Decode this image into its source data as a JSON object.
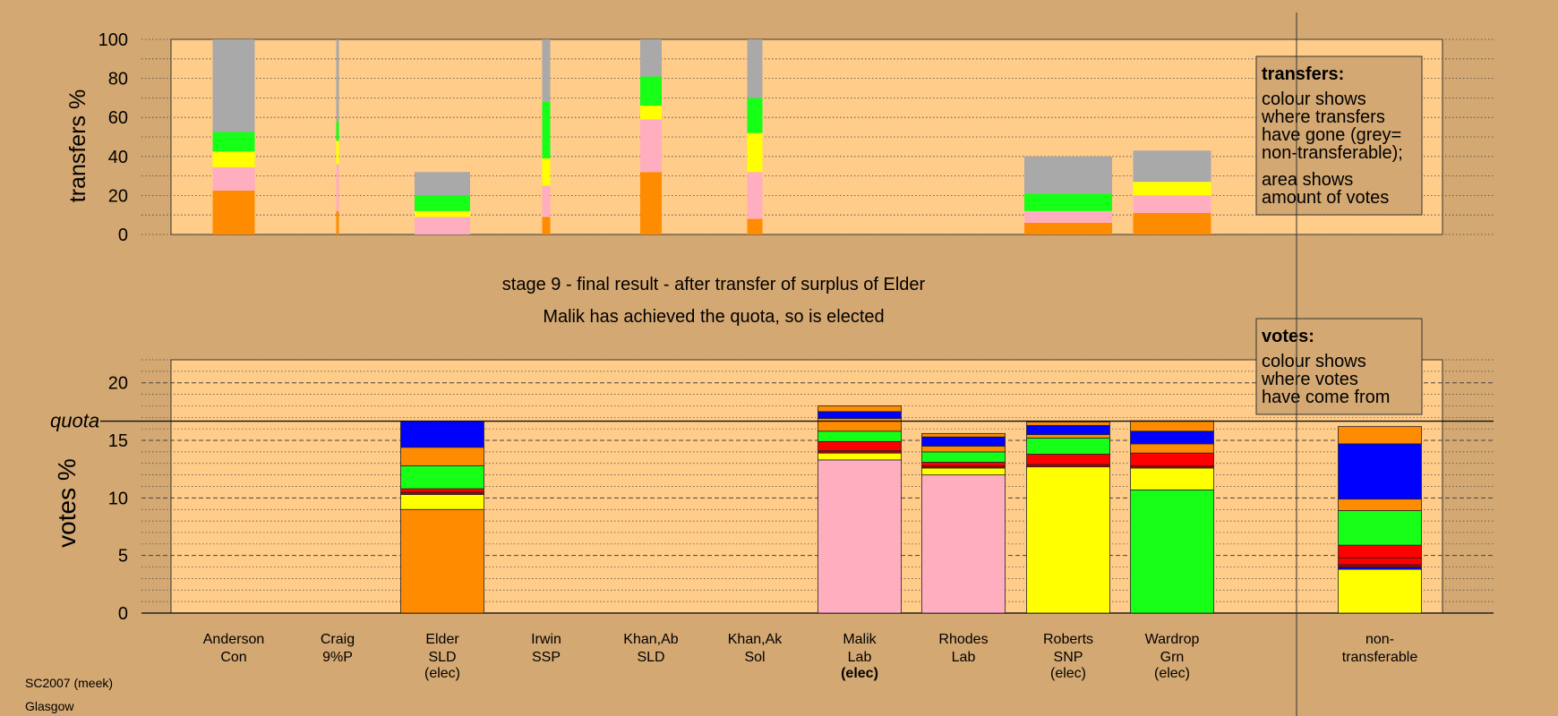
{
  "colors": {
    "background": "#d4a872",
    "plot_area": "#ffcc8a",
    "Con": "#ff8c00",
    "Lab": "#ffaec0",
    "SNP": "#ffff00",
    "Grn": "#16ff16",
    "SLD": "#ff8c00",
    "SSP": "#ff0000",
    "9%P": "#b00000",
    "Sol": "#0000ff",
    "non-transferable": "#a9a9a9",
    "grid": "#555555"
  },
  "chart_data": [
    {
      "type": "bar",
      "stacked": true,
      "ylabel": "transfers %",
      "ylim": [
        0,
        100
      ],
      "yticks": [
        0,
        20,
        40,
        60,
        80,
        100
      ],
      "grid": "dotted every 10",
      "categories": [
        "Anderson Con",
        "Craig 9%P",
        "Elder SLD",
        "Irwin SSP",
        "Khan,Ab SLD",
        "Khan,Ak Sol",
        "Malik Lab",
        "Rhodes Lab",
        "Roberts SNP",
        "Wardrop Grn"
      ],
      "bars": [
        {
          "candidate": "Anderson",
          "segments": [
            {
              "party": "Con",
              "value": 22.5
            },
            {
              "party": "Lab",
              "value": 12
            },
            {
              "party": "SNP",
              "value": 8
            },
            {
              "party": "Grn",
              "value": 10
            },
            {
              "party": "non-transferable",
              "value": 47.5
            }
          ]
        },
        {
          "candidate": "Craig",
          "segments": [
            {
              "party": "Con",
              "value": 12
            },
            {
              "party": "Lab",
              "value": 24
            },
            {
              "party": "SNP",
              "value": 12
            },
            {
              "party": "Grn",
              "value": 10
            },
            {
              "party": "non-transferable",
              "value": 42
            }
          ]
        },
        {
          "candidate": "Elder",
          "segments": [
            {
              "party": "Lab",
              "value": 9
            },
            {
              "party": "SNP",
              "value": 3
            },
            {
              "party": "Grn",
              "value": 8
            },
            {
              "party": "non-transferable",
              "value": 12
            }
          ]
        },
        {
          "candidate": "Irwin",
          "segments": [
            {
              "party": "Con",
              "value": 9
            },
            {
              "party": "Lab",
              "value": 16
            },
            {
              "party": "SNP",
              "value": 14
            },
            {
              "party": "Grn",
              "value": 29
            },
            {
              "party": "non-transferable",
              "value": 32
            }
          ]
        },
        {
          "candidate": "Khan,Ab",
          "segments": [
            {
              "party": "Con",
              "value": 32
            },
            {
              "party": "Lab",
              "value": 27
            },
            {
              "party": "SNP",
              "value": 7
            },
            {
              "party": "Grn",
              "value": 15
            },
            {
              "party": "non-transferable",
              "value": 19
            }
          ]
        },
        {
          "candidate": "Khan,Ak",
          "segments": [
            {
              "party": "Con",
              "value": 8
            },
            {
              "party": "Lab",
              "value": 24
            },
            {
              "party": "SNP",
              "value": 20
            },
            {
              "party": "Grn",
              "value": 18
            },
            {
              "party": "non-transferable",
              "value": 30
            }
          ]
        },
        {
          "candidate": "Roberts",
          "segments": [
            {
              "party": "Con",
              "value": 6
            },
            {
              "party": "Lab",
              "value": 6
            },
            {
              "party": "Grn",
              "value": 9
            },
            {
              "party": "non-transferable",
              "value": 19
            }
          ]
        },
        {
          "candidate": "Wardrop",
          "segments": [
            {
              "party": "Con",
              "value": 11
            },
            {
              "party": "Lab",
              "value": 9
            },
            {
              "party": "SNP",
              "value": 7
            },
            {
              "party": "non-transferable",
              "value": 16
            }
          ]
        }
      ],
      "legend": {
        "title": "transfers:",
        "lines_1": [
          "colour shows",
          "where transfers",
          "have gone (grey=",
          "non-transferable);"
        ],
        "lines_2": [
          "area shows",
          "amount of votes"
        ]
      }
    },
    {
      "type": "bar",
      "stacked": true,
      "ylabel": "votes %",
      "ylim": [
        0,
        22
      ],
      "yticks": [
        0,
        5,
        10,
        15,
        20
      ],
      "quota": 16.67,
      "quota_label": "quota",
      "grid": "dashed every 5, dotted every 1",
      "bars": [
        {
          "candidate": "Elder",
          "segments": [
            {
              "party": "Con",
              "value": 9
            },
            {
              "party": "SNP",
              "value": 1.3
            },
            {
              "party": "9%P",
              "value": 0.2
            },
            {
              "party": "SSP",
              "value": 0.3
            },
            {
              "party": "Grn",
              "value": 2
            },
            {
              "party": "SLD",
              "value": 1.6
            },
            {
              "party": "Sol",
              "value": 2.27
            }
          ]
        },
        {
          "candidate": "Malik",
          "segments": [
            {
              "party": "Lab",
              "value": 13.3
            },
            {
              "party": "SNP",
              "value": 0.6
            },
            {
              "party": "9%P",
              "value": 0.2
            },
            {
              "party": "SSP",
              "value": 0.8
            },
            {
              "party": "Grn",
              "value": 0.9
            },
            {
              "party": "SLD",
              "value": 1.1
            },
            {
              "party": "Sol",
              "value": 0.6
            },
            {
              "party": "Con",
              "value": 0.5
            }
          ]
        },
        {
          "candidate": "Rhodes",
          "segments": [
            {
              "party": "Lab",
              "value": 12
            },
            {
              "party": "SNP",
              "value": 0.6
            },
            {
              "party": "9%P",
              "value": 0.2
            },
            {
              "party": "SSP",
              "value": 0.3
            },
            {
              "party": "Grn",
              "value": 0.9
            },
            {
              "party": "SLD",
              "value": 0.5
            },
            {
              "party": "Sol",
              "value": 0.8
            },
            {
              "party": "Con",
              "value": 0.3
            }
          ]
        },
        {
          "candidate": "Roberts",
          "segments": [
            {
              "party": "SNP",
              "value": 12.7
            },
            {
              "party": "9%P",
              "value": 0.2
            },
            {
              "party": "SSP",
              "value": 0.9
            },
            {
              "party": "Grn",
              "value": 1.4
            },
            {
              "party": "SLD",
              "value": 0.3
            },
            {
              "party": "Sol",
              "value": 0.8
            },
            {
              "party": "Con",
              "value": 0.3
            }
          ]
        },
        {
          "candidate": "Wardrop",
          "segments": [
            {
              "party": "Grn",
              "value": 10.7
            },
            {
              "party": "SNP",
              "value": 1.9
            },
            {
              "party": "9%P",
              "value": 0.2
            },
            {
              "party": "SSP",
              "value": 1.1
            },
            {
              "party": "Con",
              "value": 0.8
            },
            {
              "party": "Sol",
              "value": 1.1
            },
            {
              "party": "SLD",
              "value": 0.9
            }
          ]
        },
        {
          "candidate": "non-transferable",
          "segments": [
            {
              "party": "SNP",
              "value": 3.8
            },
            {
              "party": "Sol",
              "value": 0.2
            },
            {
              "party": "9%P",
              "value": 0.2
            },
            {
              "party": "SSP",
              "value": 0.6
            },
            {
              "party": "SSP",
              "value": 1.1
            },
            {
              "party": "Grn",
              "value": 3.0
            },
            {
              "party": "Con",
              "value": 1.0
            },
            {
              "party": "Sol",
              "value": 4.8
            },
            {
              "party": "Con",
              "value": 1.5
            }
          ]
        }
      ],
      "legend": {
        "title": "votes:",
        "lines": [
          "colour shows",
          "where votes",
          "have come from"
        ]
      }
    }
  ],
  "stage_title": "stage 9 - final result - after transfer of surplus of Elder",
  "stage_subtitle": "Malik has achieved the quota, so is elected",
  "candidates": [
    {
      "name": "Anderson",
      "party": "Con",
      "status": "",
      "status_bold": false
    },
    {
      "name": "Craig",
      "party": "9%P",
      "status": "",
      "status_bold": false
    },
    {
      "name": "Elder",
      "party": "SLD",
      "status": "(elec)",
      "status_bold": false
    },
    {
      "name": "Irwin",
      "party": "SSP",
      "status": "",
      "status_bold": false
    },
    {
      "name": "Khan,Ab",
      "party": "SLD",
      "status": "",
      "status_bold": false
    },
    {
      "name": "Khan,Ak",
      "party": "Sol",
      "status": "",
      "status_bold": false
    },
    {
      "name": "Malik",
      "party": "Lab",
      "status": "(elec)",
      "status_bold": true
    },
    {
      "name": "Rhodes",
      "party": "Lab",
      "status": "",
      "status_bold": false
    },
    {
      "name": "Roberts",
      "party": "SNP",
      "status": "(elec)",
      "status_bold": false
    },
    {
      "name": "Wardrop",
      "party": "Grn",
      "status": "(elec)",
      "status_bold": false
    }
  ],
  "nontransferable_label": [
    "non-",
    "transferable"
  ],
  "footer": {
    "line1": "SC2007 (meek)",
    "line2": "Glasgow"
  }
}
